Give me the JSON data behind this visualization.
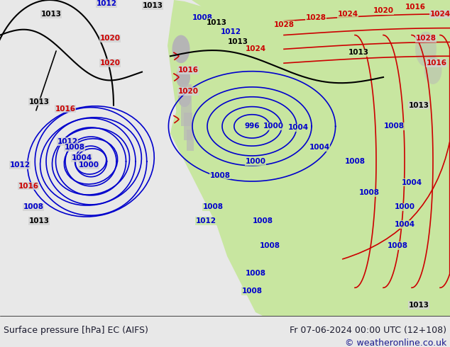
{
  "title_left": "Surface pressure [hPa] EC (AIFS)",
  "title_right": "Fr 07-06-2024 00:00 UTC (12+108)",
  "copyright": "© weatheronline.co.uk",
  "bg_color": "#d8d8d8",
  "land_color": "#c8e6a0",
  "ocean_color": "#d8d8d8",
  "footer_bg": "#ffffff",
  "title_color": "#1a1a6e",
  "copyright_color": "#1a1a6e",
  "label_left_color": "#000000",
  "isobar_blue": "#0000cc",
  "isobar_red": "#cc0000",
  "isobar_black": "#000000",
  "figsize": [
    6.34,
    4.9
  ],
  "dpi": 100
}
